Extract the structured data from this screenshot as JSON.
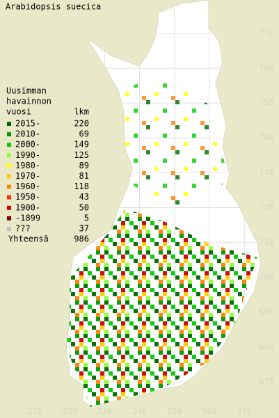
{
  "title": "Arabidopsis suecica",
  "legend": {
    "header": [
      "Uusimman",
      "havainnon",
      "vuosi"
    ],
    "count_header": "lkm",
    "rows": [
      {
        "label": "2015-",
        "count": 220,
        "color": "#006600"
      },
      {
        "label": "2010-",
        "count": 69,
        "color": "#009900"
      },
      {
        "label": "2000-",
        "count": 149,
        "color": "#00cc00"
      },
      {
        "label": "1990-",
        "count": 125,
        "color": "#88ff33"
      },
      {
        "label": "1980-",
        "count": 89,
        "color": "#ffff00"
      },
      {
        "label": "1970-",
        "count": 81,
        "color": "#ffcc00"
      },
      {
        "label": "1960-",
        "count": 118,
        "color": "#ff8000"
      },
      {
        "label": "1950-",
        "count": 43,
        "color": "#ff3300"
      },
      {
        "label": "1900-",
        "count": 50,
        "color": "#cc0000"
      },
      {
        "label": "-1899",
        "count": 5,
        "color": "#800000"
      },
      {
        "label": "???",
        "count": 37,
        "color": "#c0c0c0"
      }
    ],
    "total": {
      "label": "Yhteensä",
      "count": 986
    }
  },
  "axes": {
    "y_labels": [
      770,
      760,
      750,
      740,
      730,
      720,
      710,
      700,
      690,
      680,
      670
    ],
    "x_labels": [
      310,
      320,
      330,
      340,
      350,
      360,
      370
    ]
  }
}
